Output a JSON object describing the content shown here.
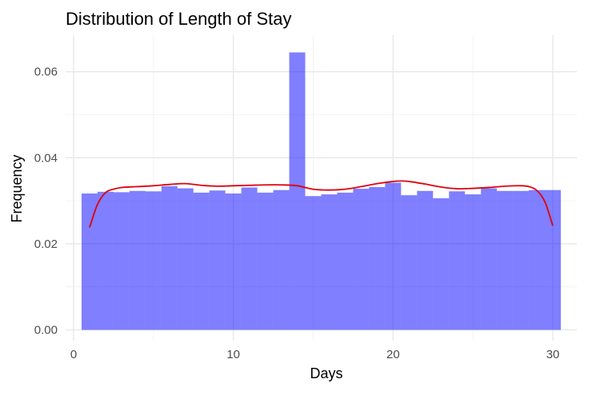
{
  "chart_data": {
    "type": "bar",
    "title": "Distribution of Length of Stay",
    "xlabel": "Days",
    "ylabel": "Frequency",
    "xlim": [
      -0.5,
      31.5
    ],
    "ylim": [
      -0.0025,
      0.0685
    ],
    "x_ticks": [
      0,
      10,
      20,
      30
    ],
    "x_tick_labels": [
      "0",
      "10",
      "20",
      "30"
    ],
    "y_ticks": [
      0.0,
      0.02,
      0.04,
      0.06
    ],
    "y_tick_labels": [
      "0.00",
      "0.02",
      "0.04",
      "0.06"
    ],
    "grid": true,
    "legend": "none",
    "bar_color": "#0000ff",
    "bar_opacity": 0.5,
    "line_color": "#e0000f",
    "histogram": {
      "x": [
        1,
        2,
        3,
        4,
        5,
        6,
        7,
        8,
        9,
        10,
        11,
        12,
        13,
        14,
        15,
        16,
        17,
        18,
        19,
        20,
        21,
        22,
        23,
        24,
        25,
        26,
        27,
        28,
        29,
        30
      ],
      "values": [
        0.0317,
        0.0321,
        0.032,
        0.0323,
        0.0322,
        0.0334,
        0.0329,
        0.0319,
        0.0324,
        0.0317,
        0.0331,
        0.0319,
        0.0325,
        0.0645,
        0.0311,
        0.0315,
        0.0319,
        0.0328,
        0.0332,
        0.0342,
        0.0313,
        0.0323,
        0.0306,
        0.0322,
        0.0315,
        0.0329,
        0.0323,
        0.0323,
        0.0325,
        0.0325
      ]
    },
    "density": {
      "x": [
        1,
        1.5,
        2,
        2.5,
        3,
        4,
        5,
        6,
        7,
        8,
        9,
        10,
        11,
        12,
        13,
        14,
        15,
        16,
        17,
        18,
        19,
        20,
        20.5,
        21,
        22,
        23,
        24,
        25,
        26,
        27,
        28,
        28.5,
        29,
        29.5,
        30
      ],
      "values": [
        0.0238,
        0.0292,
        0.0319,
        0.0327,
        0.0331,
        0.0333,
        0.0335,
        0.0338,
        0.034,
        0.0336,
        0.0334,
        0.0335,
        0.0336,
        0.0337,
        0.0337,
        0.0335,
        0.0327,
        0.0325,
        0.0327,
        0.0333,
        0.034,
        0.0345,
        0.0346,
        0.0345,
        0.0339,
        0.0332,
        0.0328,
        0.0329,
        0.0331,
        0.0334,
        0.0335,
        0.0333,
        0.0324,
        0.0298,
        0.0242
      ]
    }
  }
}
